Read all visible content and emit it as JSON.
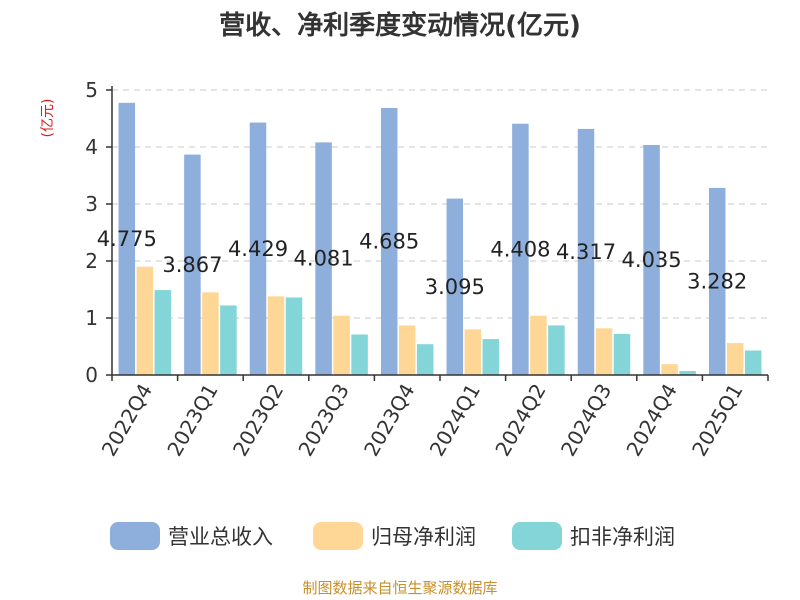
{
  "chart_data": {
    "type": "bar",
    "title": "营收、净利季度变动情况(亿元)",
    "unit_label": "(亿元)",
    "categories": [
      "2022Q4",
      "2023Q1",
      "2023Q2",
      "2023Q3",
      "2023Q4",
      "2024Q1",
      "2024Q2",
      "2024Q3",
      "2024Q4",
      "2025Q1"
    ],
    "series": [
      {
        "name": "营业总收入",
        "color": "#8eaedb",
        "values": [
          4.775,
          3.867,
          4.429,
          4.081,
          4.685,
          3.095,
          4.408,
          4.317,
          4.035,
          3.282
        ]
      },
      {
        "name": "归母净利润",
        "color": "#fed797",
        "values": [
          1.9,
          1.45,
          1.38,
          1.04,
          0.87,
          0.8,
          1.04,
          0.82,
          0.19,
          0.56
        ]
      },
      {
        "name": "扣非净利润",
        "color": "#84d5d8",
        "values": [
          1.49,
          1.22,
          1.36,
          0.71,
          0.54,
          0.63,
          0.87,
          0.72,
          0.07,
          0.43
        ]
      }
    ],
    "data_labels": [
      "4.775",
      "3.867",
      "4.429",
      "4.081",
      "4.685",
      "3.095",
      "4.408",
      "4.317",
      "4.035",
      "3.282"
    ],
    "ylim": [
      0,
      5
    ],
    "yticks": [
      "0",
      "1",
      "2",
      "3",
      "4",
      "5"
    ],
    "grid": true,
    "legend_position": "bottom"
  },
  "source_text": "制图数据来自恒生聚源数据库"
}
